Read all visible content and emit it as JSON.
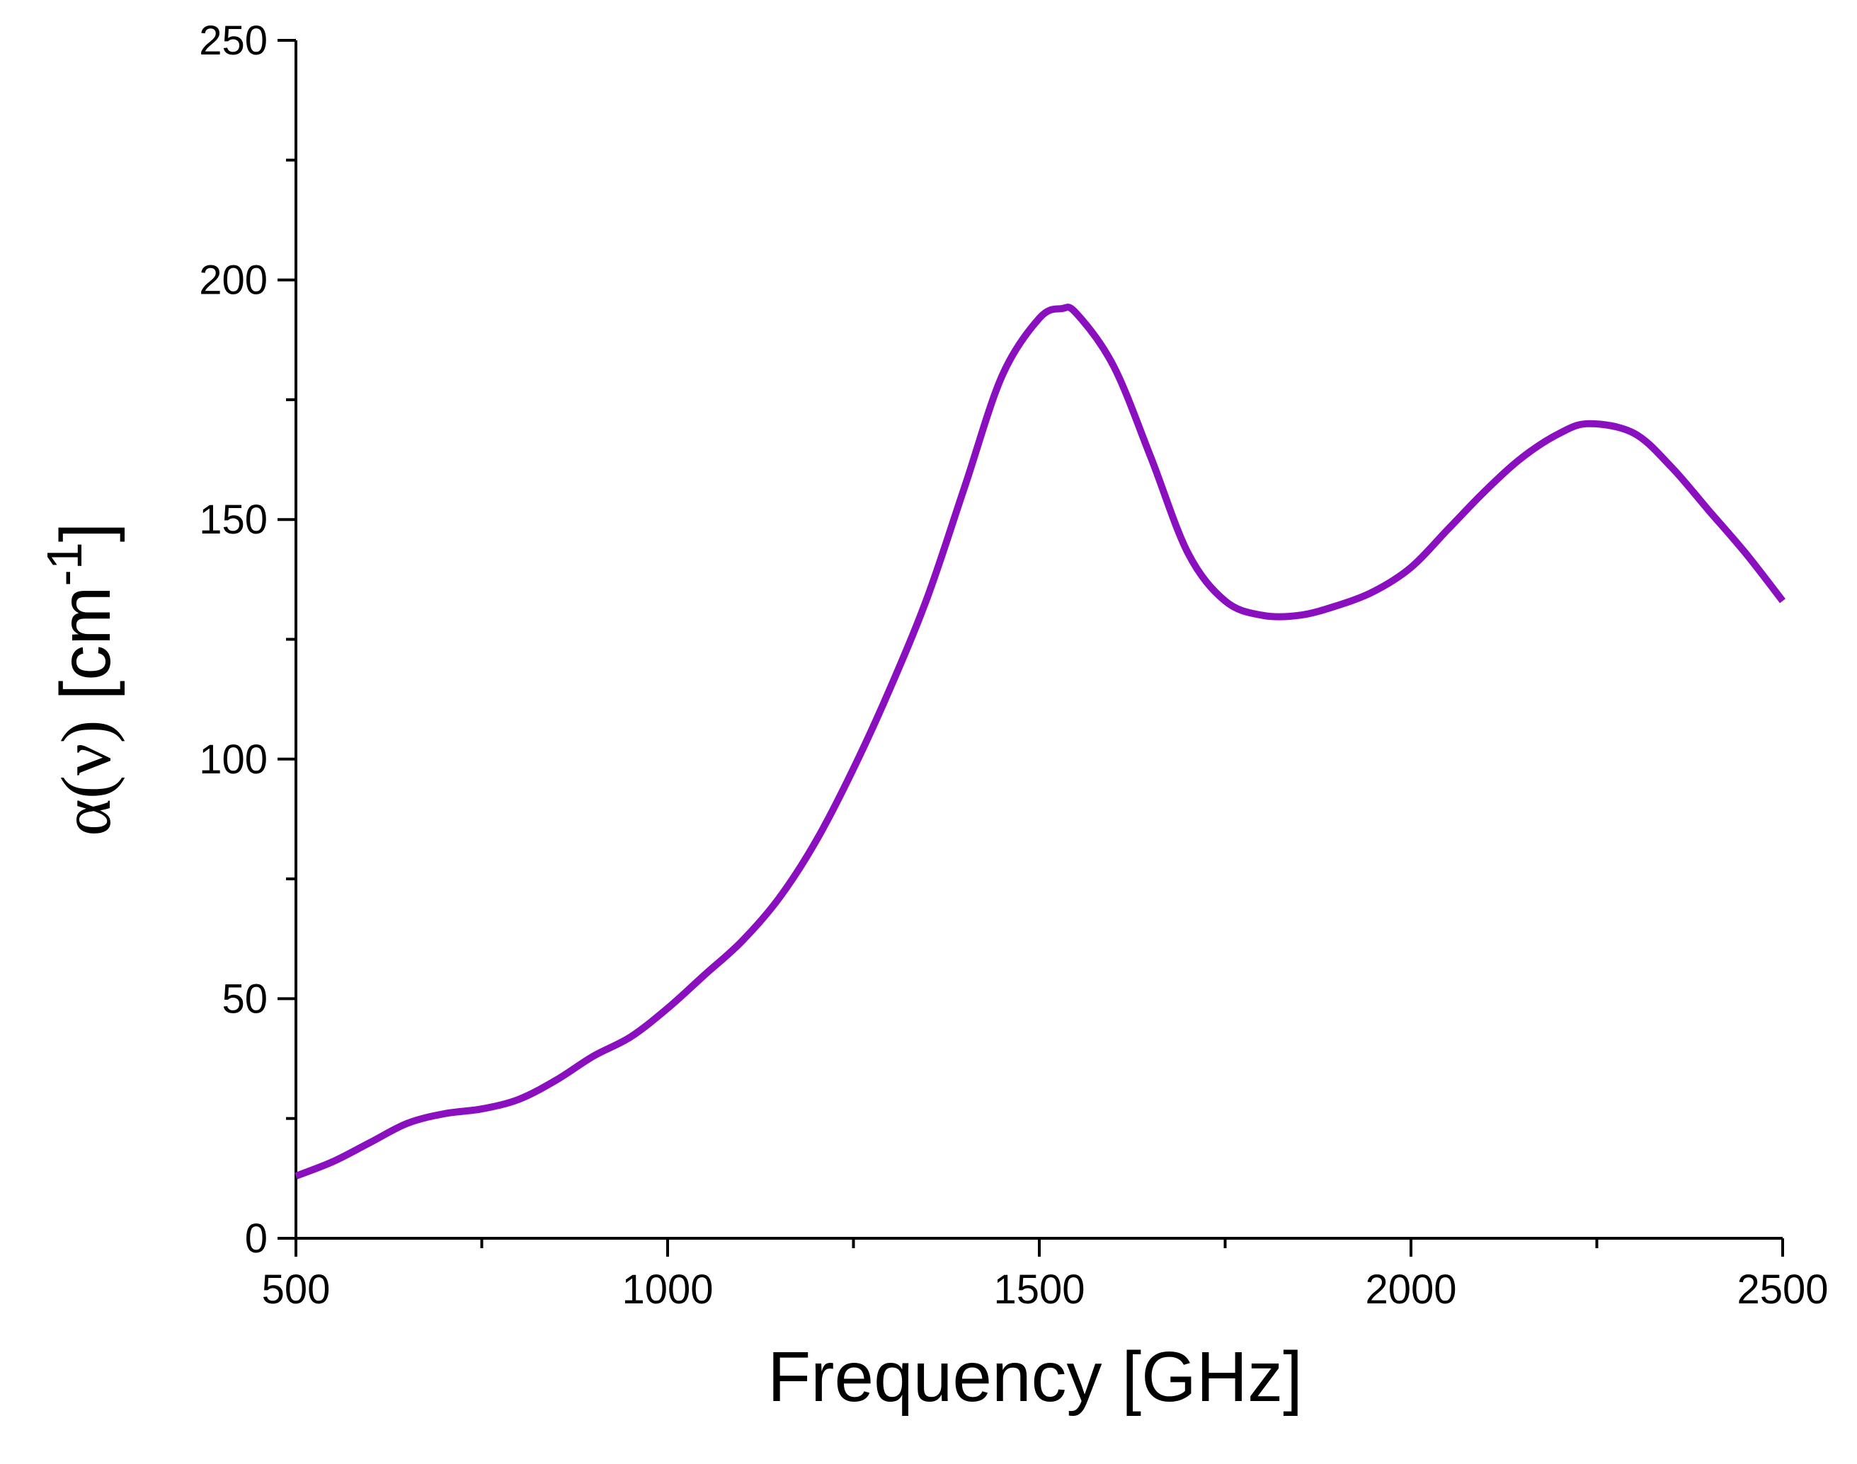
{
  "chart_data": {
    "type": "line",
    "title": "",
    "xlabel": "Frequency [GHz]",
    "ylabel_parts": {
      "greek": "α(ν)",
      "unit_prefix": " [cm",
      "unit_sup": "-1",
      "unit_suffix": "]"
    },
    "xlim": [
      500,
      2500
    ],
    "ylim": [
      0,
      250
    ],
    "x_major_ticks": [
      500,
      1000,
      1500,
      2000,
      2500
    ],
    "x_tick_labels": [
      "500",
      "1000",
      "1500",
      "2000",
      "2500"
    ],
    "x_minor_ticks": [
      750,
      1250,
      1750,
      2250
    ],
    "y_major_ticks": [
      0,
      50,
      100,
      150,
      200,
      250
    ],
    "y_tick_labels": [
      "0",
      "50",
      "100",
      "150",
      "200",
      "250"
    ],
    "y_minor_ticks": [
      25,
      75,
      125,
      175,
      225
    ],
    "grid": false,
    "legend": "none",
    "series": [
      {
        "color": "#8a0fbf",
        "x": [
          500,
          550,
          600,
          650,
          700,
          750,
          800,
          850,
          900,
          950,
          1000,
          1050,
          1100,
          1150,
          1200,
          1250,
          1300,
          1350,
          1400,
          1450,
          1500,
          1530,
          1550,
          1600,
          1650,
          1700,
          1750,
          1800,
          1850,
          1900,
          1950,
          2000,
          2050,
          2100,
          2150,
          2200,
          2240,
          2300,
          2350,
          2400,
          2450,
          2500
        ],
        "y": [
          13,
          16,
          20,
          24,
          26,
          27,
          29,
          33,
          38,
          42,
          48,
          55,
          62,
          71,
          83,
          98,
          115,
          134,
          157,
          180,
          192,
          194,
          193,
          182,
          163,
          143,
          133,
          130,
          130,
          132,
          135,
          140,
          148,
          156,
          163,
          168,
          170,
          168,
          161,
          152,
          143,
          133
        ]
      }
    ]
  }
}
